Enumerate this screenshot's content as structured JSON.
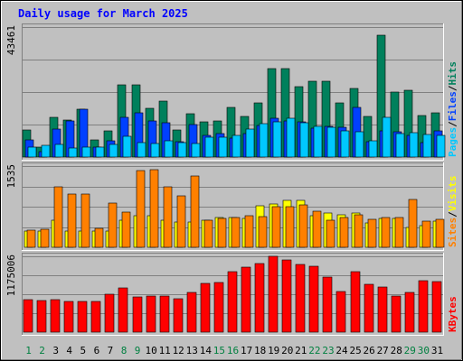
{
  "chart_data": {
    "type": "bar",
    "title": "Daily usage for March 2025",
    "categories": [
      "1",
      "2",
      "3",
      "4",
      "5",
      "6",
      "7",
      "8",
      "9",
      "10",
      "11",
      "12",
      "13",
      "14",
      "15",
      "16",
      "17",
      "18",
      "19",
      "20",
      "21",
      "22",
      "23",
      "24",
      "25",
      "26",
      "27",
      "28",
      "29",
      "30",
      "31"
    ],
    "weekend_days": [
      "1",
      "2",
      "8",
      "9",
      "15",
      "16",
      "22",
      "23",
      "29",
      "30"
    ],
    "colors": {
      "weekday_label": "#000000",
      "weekend_label": "#008040",
      "hits": "#00805c",
      "files": "#0040ff",
      "pages": "#00c8ff",
      "visits": "#ffff00",
      "sites": "#ff8000",
      "kbytes": "#ff0000"
    },
    "panels": [
      {
        "name": "requests",
        "ymax_label": "43461",
        "ymax": 43461,
        "legend": [
          "Pages",
          "Files",
          "Hits"
        ],
        "series": [
          {
            "name": "Hits",
            "values": [
              9000,
              3200,
              13200,
              12300,
              16100,
              5700,
              8800,
              24000,
              24000,
              16300,
              18800,
              9000,
              14600,
              11700,
              12100,
              16500,
              13600,
              18000,
              29500,
              29500,
              23600,
              25500,
              25500,
              18000,
              23000,
              13500,
              40800,
              21800,
              22300,
              14000,
              14900
            ]
          },
          {
            "name": "Files",
            "values": [
              5700,
              1700,
              9400,
              12000,
              16100,
              3300,
              5500,
              13400,
              14700,
              12000,
              11500,
              5000,
              10900,
              7300,
              7700,
              6400,
              7700,
              10700,
              13100,
              12000,
              11700,
              9700,
              10400,
              10100,
              16700,
              5000,
              8900,
              8500,
              7300,
              4800,
              8900
            ]
          },
          {
            "name": "Pages",
            "values": [
              3300,
              3800,
              4300,
              3000,
              3400,
              3300,
              4200,
              6900,
              4800,
              4600,
              5500,
              4800,
              4600,
              6700,
              6700,
              7100,
              9500,
              11200,
              11900,
              13000,
              11500,
              10400,
              10100,
              8700,
              8600,
              5300,
              13400,
              7900,
              8000,
              7500,
              7200
            ]
          }
        ]
      },
      {
        "name": "visitors",
        "ymax_label": "1535",
        "ymax": 1535,
        "legend": [
          "Sites",
          "Visits"
        ],
        "series": [
          {
            "name": "Visits",
            "values": [
              310,
              310,
              510,
              310,
              310,
              310,
              310,
              510,
              590,
              590,
              510,
              470,
              470,
              520,
              570,
              570,
              540,
              790,
              820,
              880,
              890,
              600,
              650,
              610,
              650,
              460,
              540,
              540,
              380,
              410,
              490
            ]
          },
          {
            "name": "Sites",
            "values": [
              320,
              340,
              1150,
              1000,
              1000,
              360,
              840,
              660,
              1450,
              1470,
              1150,
              980,
              1350,
              520,
              550,
              560,
              590,
              580,
              770,
              760,
              800,
              680,
              520,
              560,
              620,
              530,
              560,
              560,
              900,
              490,
              530
            ]
          }
        ]
      },
      {
        "name": "traffic",
        "ymax_label": "1175006",
        "ymax": 1175006,
        "legend": [
          "KBytes"
        ],
        "series": [
          {
            "name": "KBytes",
            "values": [
              498000,
              488000,
              498000,
              469000,
              471000,
              469000,
              585000,
              692000,
              542000,
              563000,
              555000,
              518000,
              614000,
              758000,
              772000,
              944000,
              1013000,
              1068000,
              1175006,
              1114000,
              1050000,
              1025000,
              859000,
              628000,
              940000,
              742000,
              701000,
              555000,
              614000,
              803000,
              786000
            ]
          }
        ]
      }
    ]
  }
}
